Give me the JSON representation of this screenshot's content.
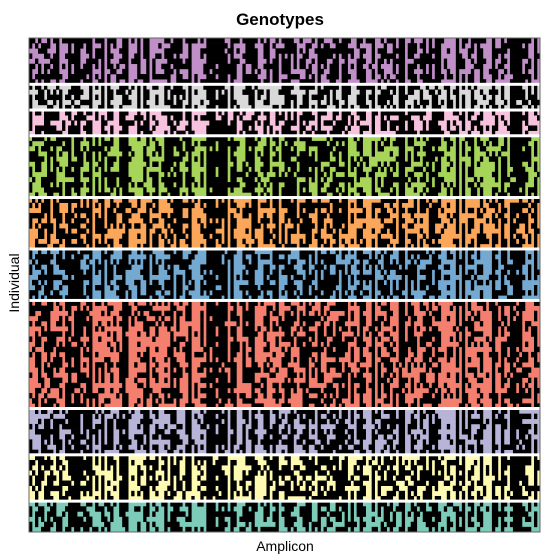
{
  "chart_data": {
    "type": "heatmap",
    "title": "Genotypes",
    "xlabel": "Amplicon",
    "ylabel": "Individual",
    "missing_color": "#000000",
    "separator_color": "#ffffff",
    "groups": [
      {
        "color": "#c08fc7",
        "rows": 9,
        "missing_fraction": 0.62
      },
      {
        "color": "#d9d9d9",
        "rows": 5,
        "missing_fraction": 0.55
      },
      {
        "color": "#f7c2dd",
        "rows": 5,
        "missing_fraction": 0.58
      },
      {
        "color": "#a6d55a",
        "rows": 12,
        "missing_fraction": 0.6
      },
      {
        "color": "#fba658",
        "rows": 10,
        "missing_fraction": 0.55
      },
      {
        "color": "#74a9d2",
        "rows": 10,
        "missing_fraction": 0.6
      },
      {
        "color": "#f47f6f",
        "rows": 21,
        "missing_fraction": 0.55
      },
      {
        "color": "#b8b4d8",
        "rows": 9,
        "missing_fraction": 0.6
      },
      {
        "color": "#fefab1",
        "rows": 9,
        "missing_fraction": 0.6
      },
      {
        "color": "#7dcbb9",
        "rows": 6,
        "missing_fraction": 0.6
      }
    ],
    "amplicon_count": 170
  }
}
